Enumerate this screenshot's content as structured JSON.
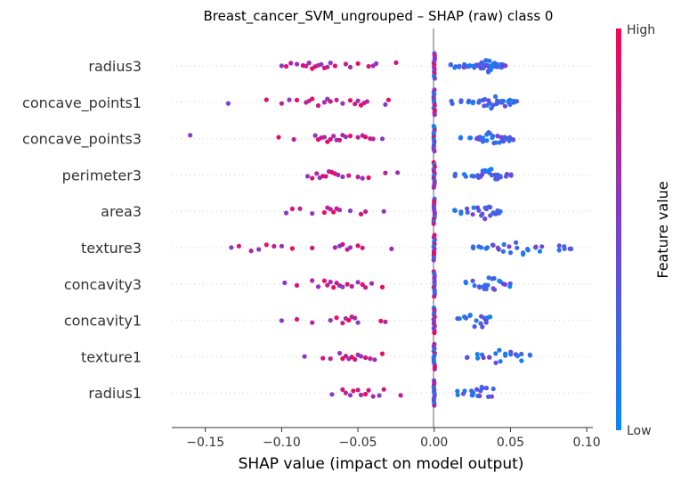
{
  "chart_data": {
    "type": "scatter",
    "subtype": "shap-beeswarm",
    "title": "Breast_cancer_SVM_ungrouped – SHAP (raw) class 0",
    "xlabel": "SHAP value (impact on model output)",
    "xlim": [
      -0.172,
      0.104
    ],
    "xticks": [
      -0.15,
      -0.1,
      -0.05,
      0.0,
      0.05,
      0.1
    ],
    "xtick_labels": [
      "−0.15",
      "−0.10",
      "−0.05",
      "0.00",
      "0.05",
      "0.10"
    ],
    "colorbar": {
      "label": "Feature value",
      "high": "High",
      "low": "Low",
      "color_high": "#ff0052",
      "color_mid": "#7b3fd6",
      "color_low": "#008bfb"
    },
    "colors": {
      "zero_line": "#999999",
      "row_guide": "#cccccc",
      "axis": "#333333"
    },
    "features": [
      {
        "name": "radius3",
        "pos": [
          0.01,
          0.014,
          0.017,
          0.02,
          0.022,
          0.024,
          0.026,
          0.028,
          0.03,
          0.031,
          0.032,
          0.033,
          0.034,
          0.035,
          0.036,
          0.037,
          0.038,
          0.039,
          0.04,
          0.041,
          0.042,
          0.043,
          0.044,
          0.045,
          0.046
        ],
        "neg": [
          -0.1,
          -0.097,
          -0.094,
          -0.09,
          -0.086,
          -0.084,
          -0.082,
          -0.08,
          -0.078,
          -0.076,
          -0.074,
          -0.072,
          -0.07,
          -0.068,
          -0.065,
          -0.058,
          -0.055,
          -0.05,
          -0.043,
          -0.04,
          -0.038,
          -0.025
        ],
        "zero": 12
      },
      {
        "name": "concave_points1",
        "pos": [
          0.012,
          0.018,
          0.022,
          0.026,
          0.03,
          0.032,
          0.034,
          0.036,
          0.038,
          0.04,
          0.042,
          0.044,
          0.046,
          0.048,
          0.05,
          0.052,
          0.054
        ],
        "neg": [
          -0.135,
          -0.11,
          -0.1,
          -0.095,
          -0.09,
          -0.084,
          -0.082,
          -0.08,
          -0.076,
          -0.072,
          -0.07,
          -0.068,
          -0.064,
          -0.06,
          -0.055,
          -0.052,
          -0.05,
          -0.048,
          -0.046,
          -0.044,
          -0.032,
          -0.03
        ],
        "zero": 12
      },
      {
        "name": "concave_points3",
        "pos": [
          0.018,
          0.024,
          0.028,
          0.03,
          0.032,
          0.034,
          0.036,
          0.038,
          0.04,
          0.042,
          0.044,
          0.046,
          0.048,
          0.05,
          0.052
        ],
        "neg": [
          -0.16,
          -0.102,
          -0.092,
          -0.078,
          -0.076,
          -0.074,
          -0.072,
          -0.07,
          -0.068,
          -0.066,
          -0.064,
          -0.062,
          -0.06,
          -0.058,
          -0.055,
          -0.05,
          -0.047,
          -0.045,
          -0.042,
          -0.04,
          -0.034
        ],
        "zero": 12
      },
      {
        "name": "perimeter3",
        "pos": [
          0.014,
          0.02,
          0.025,
          0.028,
          0.03,
          0.032,
          0.034,
          0.036,
          0.038,
          0.04,
          0.042,
          0.044,
          0.047,
          0.05
        ],
        "neg": [
          -0.083,
          -0.08,
          -0.077,
          -0.075,
          -0.073,
          -0.071,
          -0.069,
          -0.067,
          -0.065,
          -0.063,
          -0.06,
          -0.056,
          -0.05,
          -0.047,
          -0.043,
          -0.032,
          -0.024
        ],
        "zero": 12
      },
      {
        "name": "area3",
        "pos": [
          0.014,
          0.018,
          0.022,
          0.026,
          0.029,
          0.031,
          0.033,
          0.035,
          0.037,
          0.039,
          0.041,
          0.043
        ],
        "neg": [
          -0.097,
          -0.093,
          -0.088,
          -0.08,
          -0.072,
          -0.07,
          -0.068,
          -0.066,
          -0.064,
          -0.062,
          -0.055,
          -0.048,
          -0.045,
          -0.033
        ],
        "zero": 12
      },
      {
        "name": "texture3",
        "pos": [
          0.026,
          0.03,
          0.034,
          0.038,
          0.042,
          0.046,
          0.05,
          0.054,
          0.058,
          0.062,
          0.066,
          0.07,
          0.082,
          0.086,
          0.089
        ],
        "neg": [
          -0.133,
          -0.128,
          -0.12,
          -0.115,
          -0.11,
          -0.105,
          -0.1,
          -0.093,
          -0.08,
          -0.065,
          -0.062,
          -0.06,
          -0.057,
          -0.055,
          -0.05,
          -0.047,
          -0.028
        ],
        "zero": 12
      },
      {
        "name": "concavity3",
        "pos": [
          0.02,
          0.026,
          0.03,
          0.032,
          0.034,
          0.036,
          0.038,
          0.04,
          0.043,
          0.046,
          0.049
        ],
        "neg": [
          -0.098,
          -0.09,
          -0.08,
          -0.076,
          -0.072,
          -0.07,
          -0.068,
          -0.066,
          -0.064,
          -0.062,
          -0.06,
          -0.057,
          -0.054,
          -0.05,
          -0.047,
          -0.045,
          -0.041,
          -0.034
        ],
        "zero": 12
      },
      {
        "name": "concavity1",
        "pos": [
          0.016,
          0.02,
          0.024,
          0.027,
          0.03,
          0.032,
          0.034,
          0.036
        ],
        "neg": [
          -0.1,
          -0.09,
          -0.08,
          -0.068,
          -0.064,
          -0.06,
          -0.058,
          -0.056,
          -0.054,
          -0.052,
          -0.05,
          -0.035,
          -0.032
        ],
        "zero": 12
      },
      {
        "name": "texture1",
        "pos": [
          0.022,
          0.028,
          0.032,
          0.036,
          0.04,
          0.043,
          0.046,
          0.05,
          0.054,
          0.058,
          0.063
        ],
        "neg": [
          -0.085,
          -0.073,
          -0.068,
          -0.062,
          -0.06,
          -0.058,
          -0.056,
          -0.054,
          -0.052,
          -0.05,
          -0.048,
          -0.045,
          -0.042,
          -0.039,
          -0.034
        ],
        "zero": 12
      },
      {
        "name": "radius1",
        "pos": [
          0.016,
          0.02,
          0.024,
          0.026,
          0.028,
          0.03,
          0.032,
          0.035,
          0.038
        ],
        "neg": [
          -0.067,
          -0.06,
          -0.058,
          -0.055,
          -0.053,
          -0.05,
          -0.048,
          -0.045,
          -0.043,
          -0.04,
          -0.036,
          -0.033,
          -0.022
        ],
        "zero": 12
      }
    ]
  }
}
